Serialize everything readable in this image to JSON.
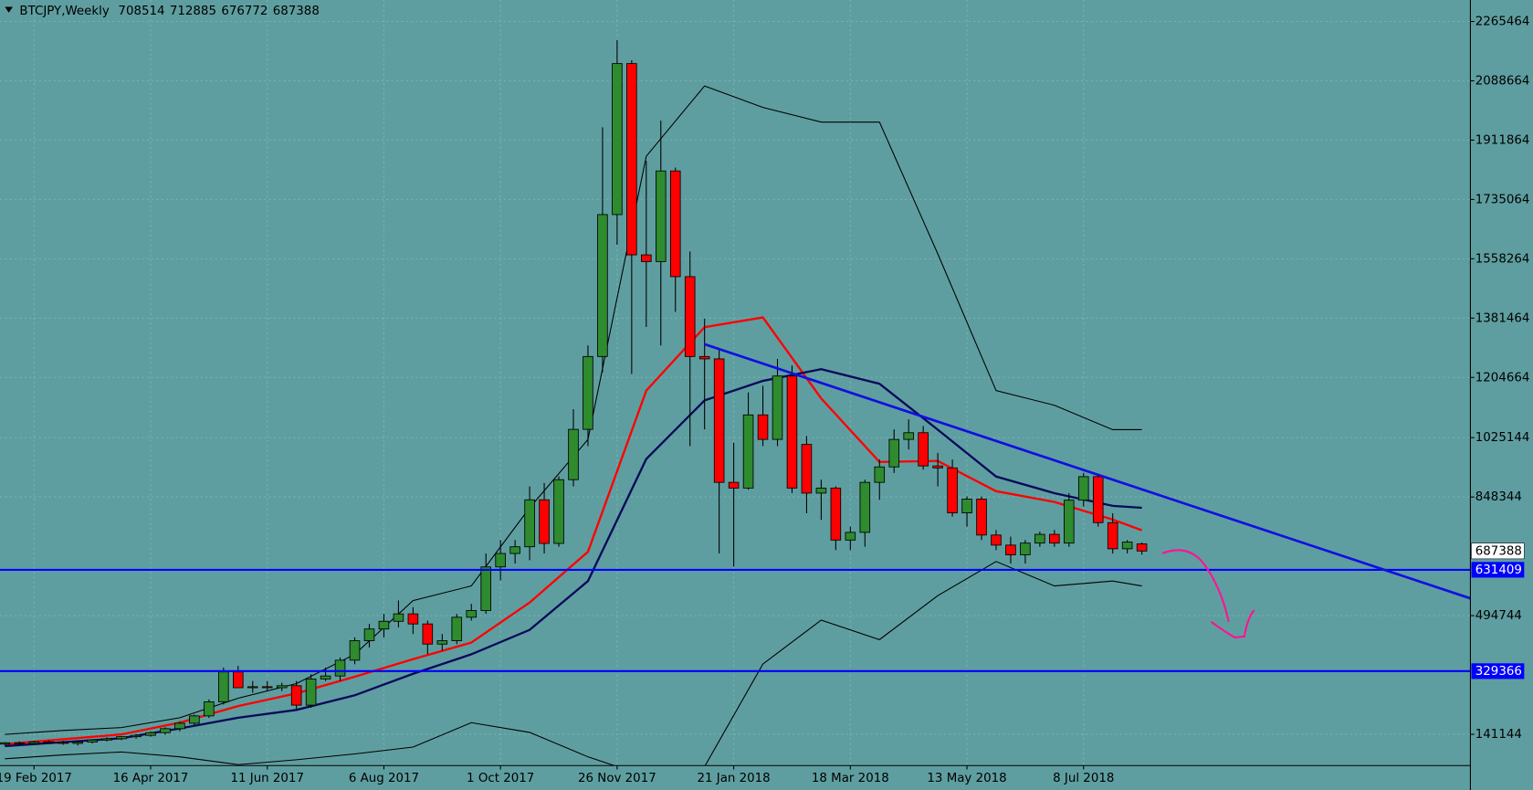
{
  "chart_data": {
    "type": "candlestick",
    "title": "BTCJPY,Weekly",
    "categories": [
      null,
      null,
      "19 Feb 2017",
      null,
      null,
      null,
      null,
      null,
      null,
      null,
      "16 Apr 2017",
      null,
      null,
      null,
      null,
      null,
      null,
      null,
      "11 Jun 2017",
      null,
      null,
      null,
      null,
      null,
      null,
      null,
      "6 Aug 2017",
      null,
      null,
      null,
      null,
      null,
      null,
      null,
      "1 Oct 2017",
      null,
      null,
      null,
      null,
      null,
      null,
      null,
      "26 Nov 2017",
      null,
      null,
      null,
      null,
      null,
      null,
      null,
      "21 Jan 2018",
      null,
      null,
      null,
      null,
      null,
      null,
      null,
      "18 Mar 2018",
      null,
      null,
      null,
      null,
      null,
      null,
      null,
      "13 May 2018",
      null,
      null,
      null,
      null,
      null,
      null,
      null,
      "8 Jul 2018",
      null,
      null,
      null,
      null
    ],
    "open": [
      112000,
      116000,
      114000,
      119000,
      117000,
      114000,
      118000,
      124000,
      128000,
      134000,
      138000,
      146000,
      158000,
      174000,
      196000,
      238000,
      327000,
      280000,
      283000,
      280000,
      286000,
      228000,
      306000,
      315000,
      362000,
      420000,
      455000,
      478000,
      500000,
      470000,
      410000,
      420000,
      490000,
      510000,
      640000,
      680000,
      700000,
      840000,
      710000,
      900000,
      1050000,
      1267000,
      1690000,
      2140000,
      1570000,
      1550000,
      1820000,
      1505000,
      1267000,
      1260000,
      892000,
      875000,
      1093000,
      1020000,
      1209000,
      1005000,
      860000,
      875000,
      720000,
      743000,
      892000,
      938000,
      1020000,
      1040000,
      941000,
      935000,
      801000,
      842000,
      735000,
      705000,
      676000,
      711000,
      737000,
      711000,
      839000,
      909000,
      772000,
      694000,
      708514
    ],
    "high": [
      118000,
      120000,
      122000,
      124000,
      122000,
      120000,
      126000,
      132000,
      136000,
      142000,
      150000,
      162000,
      180000,
      200000,
      245000,
      340000,
      345000,
      300000,
      300000,
      295000,
      300000,
      320000,
      340000,
      370000,
      430000,
      470000,
      500000,
      540000,
      520000,
      480000,
      440000,
      500000,
      530000,
      680000,
      720000,
      720000,
      880000,
      890000,
      910000,
      1110000,
      1300000,
      1950000,
      2210000,
      2150000,
      1850000,
      1970000,
      1830000,
      1580000,
      1380000,
      1290000,
      1010000,
      1160000,
      1180000,
      1260000,
      1240000,
      1030000,
      900000,
      880000,
      760000,
      900000,
      960000,
      1050000,
      1080000,
      1060000,
      980000,
      960000,
      850000,
      850000,
      750000,
      730000,
      720000,
      745000,
      750000,
      860000,
      920000,
      915000,
      800000,
      720000,
      712885
    ],
    "low": [
      108000,
      110000,
      110000,
      114000,
      110000,
      108000,
      114000,
      120000,
      124000,
      128000,
      134000,
      140000,
      150000,
      168000,
      190000,
      230000,
      285000,
      265000,
      270000,
      270000,
      215000,
      220000,
      300000,
      300000,
      350000,
      400000,
      430000,
      460000,
      440000,
      380000,
      390000,
      410000,
      480000,
      500000,
      600000,
      650000,
      660000,
      680000,
      700000,
      880000,
      1000000,
      1220000,
      1600000,
      1215000,
      1355000,
      1300000,
      1400000,
      1000000,
      1050000,
      680000,
      641000,
      870000,
      1000000,
      1000000,
      860000,
      800000,
      780000,
      690000,
      690000,
      700000,
      840000,
      920000,
      990000,
      930000,
      880000,
      790000,
      760000,
      720000,
      690000,
      650000,
      650000,
      700000,
      700000,
      700000,
      820000,
      760000,
      680000,
      680000,
      676772
    ],
    "close": [
      116000,
      114000,
      119000,
      117000,
      114000,
      118000,
      124000,
      128000,
      134000,
      138000,
      146000,
      158000,
      174000,
      196000,
      238000,
      327000,
      280000,
      283000,
      280000,
      286000,
      228000,
      306000,
      315000,
      362000,
      420000,
      455000,
      478000,
      500000,
      470000,
      410000,
      420000,
      490000,
      510000,
      640000,
      680000,
      700000,
      840000,
      710000,
      900000,
      1050000,
      1267000,
      1690000,
      2140000,
      1570000,
      1550000,
      1820000,
      1505000,
      1267000,
      1260000,
      892000,
      875000,
      1093000,
      1020000,
      1209000,
      875000,
      860000,
      875000,
      720000,
      743000,
      892000,
      938000,
      1020000,
      1040000,
      941000,
      935000,
      801000,
      842000,
      735000,
      705000,
      676000,
      711000,
      737000,
      711000,
      839000,
      909000,
      772000,
      694000,
      714000,
      687388
    ],
    "up_color": "#2e8b2e",
    "down_color": "#ff0000",
    "indicators": [
      {
        "color": "#ff0000",
        "width": 2.2,
        "x": [
          0,
          4,
          8,
          12,
          16,
          20,
          24,
          28,
          32,
          36,
          40,
          44,
          48,
          52,
          56,
          60,
          64,
          68,
          72,
          76,
          78
        ],
        "values": [
          111800,
          126400,
          140900,
          175900,
          225300,
          263100,
          312600,
          365000,
          414500,
          533900,
          685200,
          1165400,
          1354600,
          1383600,
          1142100,
          952900,
          955800,
          865600,
          833600,
          781200,
          749200
        ]
      },
      {
        "color": "#0a0a5a",
        "width": 2.2,
        "x": [
          0,
          4,
          8,
          12,
          16,
          20,
          24,
          28,
          32,
          36,
          40,
          44,
          48,
          52,
          56,
          60,
          64,
          68,
          72,
          76,
          78
        ],
        "values": [
          106100,
          117700,
          129400,
          158500,
          190500,
          213800,
          257400,
          321400,
          379600,
          452400,
          597900,
          961600,
          1136200,
          1194400,
          1229400,
          1185700,
          1048900,
          909300,
          859800,
          822000,
          816200
        ]
      },
      {
        "color": "#000000",
        "width": 1,
        "x": [
          0,
          4,
          8,
          12,
          16,
          20,
          24,
          28,
          32,
          36,
          40,
          44,
          48,
          52,
          56,
          60,
          64,
          68,
          72,
          76,
          78
        ],
        "values": [
          140900,
          152500,
          161300,
          190500,
          248600,
          292300,
          379600,
          539700,
          583300,
          816200,
          1019900,
          1863900,
          2073400,
          2009400,
          1965700,
          1965700,
          1572800,
          1165400,
          1121800,
          1049000,
          1049000
        ]
      },
      {
        "color": "#000000",
        "width": 1,
        "x": [
          0,
          4,
          8,
          12,
          16,
          20,
          24,
          28,
          32,
          36,
          40,
          44,
          48,
          52,
          56,
          60,
          64,
          68,
          72,
          76,
          78
        ],
        "values": [
          68200,
          79800,
          88500,
          74000,
          50700,
          65300,
          82700,
          103100,
          175900,
          146800,
          74000,
          15800,
          44800,
          350500,
          481500,
          423300,
          554300,
          656100,
          583300,
          597900,
          583300
        ]
      }
    ],
    "hlines": [
      {
        "value": 631409,
        "color": "#0000ff"
      },
      {
        "value": 329366,
        "color": "#0000ff"
      }
    ],
    "ylim": [
      48000,
      2329500
    ],
    "yticks": [
      2265464,
      2088664,
      1911864,
      1735064,
      1558264,
      1381464,
      1204664,
      1025144,
      848344,
      494744,
      141144
    ],
    "grid": true
  }
}
